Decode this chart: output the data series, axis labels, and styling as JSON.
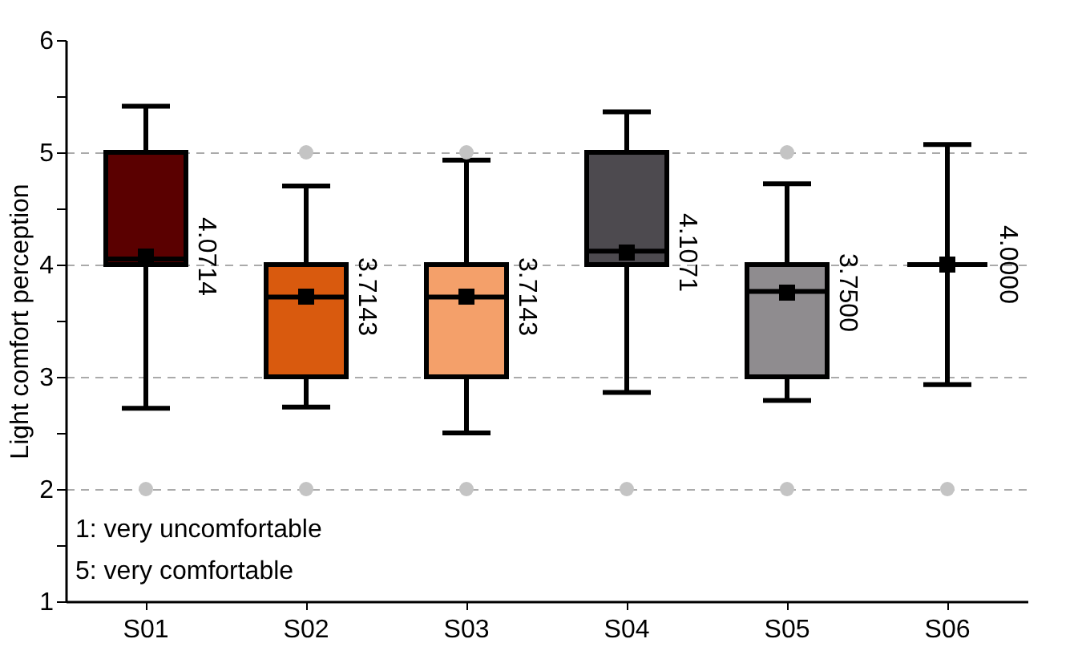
{
  "chart_data": {
    "type": "box",
    "ylabel": "Light comfort perception",
    "categories": [
      "S01",
      "S02",
      "S03",
      "S04",
      "S05",
      "S06"
    ],
    "colors": [
      "#5a0000",
      "#d95a0e",
      "#f4a06a",
      "#4d4a4f",
      "#8f8c8f",
      null
    ],
    "boxes": [
      {
        "low": 2.72,
        "q1": 4,
        "median": 4.05,
        "q3": 5,
        "high": 5.41,
        "mean": 4.0714,
        "outliers": [
          2
        ]
      },
      {
        "low": 2.73,
        "q1": 3,
        "median": 3.71,
        "q3": 4,
        "high": 4.7,
        "mean": 3.7143,
        "outliers": [
          2,
          5
        ]
      },
      {
        "low": 2.5,
        "q1": 3,
        "median": 3.71,
        "q3": 4,
        "high": 4.93,
        "mean": 3.7143,
        "outliers": [
          2,
          5
        ]
      },
      {
        "low": 2.86,
        "q1": 4,
        "median": 4.12,
        "q3": 5,
        "high": 5.36,
        "mean": 4.1071,
        "outliers": [
          2
        ]
      },
      {
        "low": 2.79,
        "q1": 3,
        "median": 3.76,
        "q3": 4,
        "high": 4.72,
        "mean": 3.75,
        "outliers": [
          2,
          5
        ]
      },
      {
        "low": 2.93,
        "q1": 4,
        "median": 4,
        "q3": 4,
        "high": 5.07,
        "mean": 4,
        "outliers": [
          2
        ]
      }
    ],
    "value_labels": [
      "4.0714",
      "3.7143",
      "3.7143",
      "4.1071",
      "3.7500",
      "4.0000"
    ],
    "ylim": [
      1,
      6
    ],
    "yticks": [
      1,
      {
        "value": 1.5,
        "label": null
      },
      2,
      {
        "value": 2.5,
        "label": null
      },
      3,
      {
        "value": 3.5,
        "label": null
      },
      4,
      {
        "value": 4.5,
        "label": null
      },
      5,
      {
        "value": 5.5,
        "label": null
      },
      6
    ],
    "grid": "y",
    "marker": "square",
    "annotations": [
      "1: very uncomfortable",
      "5: very comfortable"
    ]
  }
}
